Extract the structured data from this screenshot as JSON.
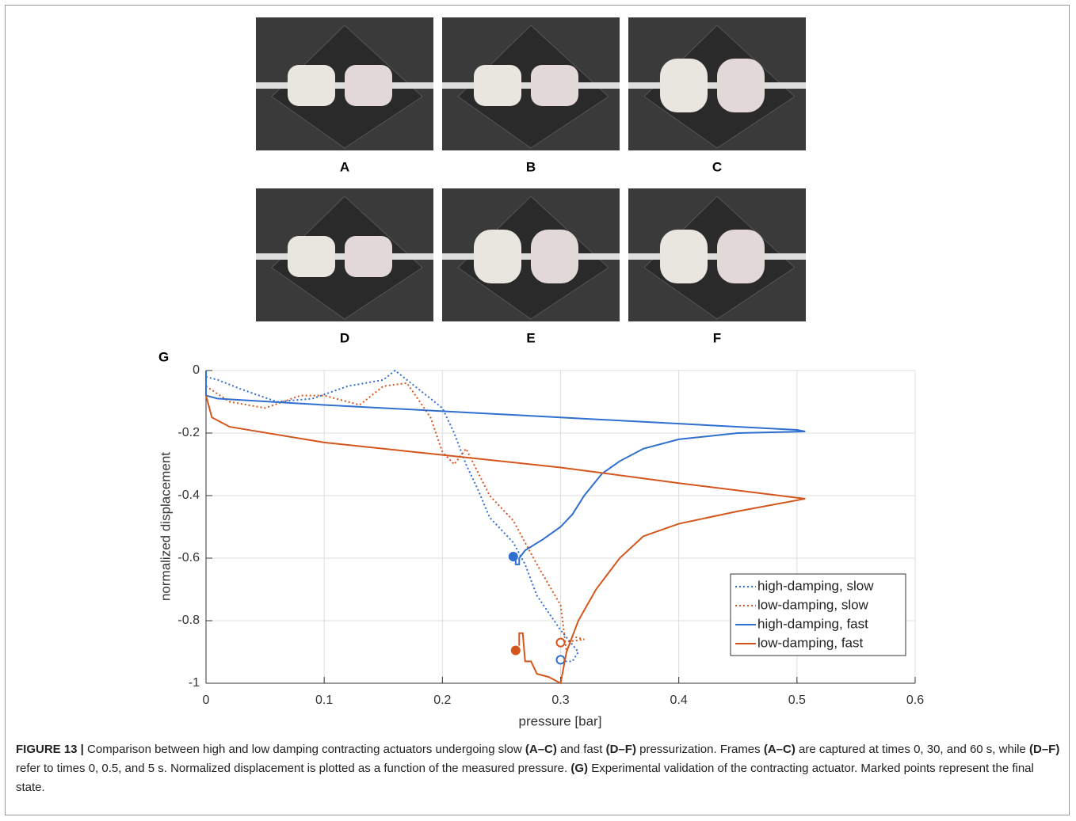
{
  "photos": {
    "panels": [
      "A",
      "B",
      "C",
      "D",
      "E",
      "F"
    ]
  },
  "chart_label": "G",
  "chart_data": {
    "type": "line",
    "xlabel": "pressure [bar]",
    "ylabel": "normalized displacement",
    "xlim": [
      0,
      0.6
    ],
    "ylim": [
      -1,
      0
    ],
    "xticks": [
      0,
      0.1,
      0.2,
      0.3,
      0.4,
      0.5,
      0.6
    ],
    "yticks": [
      -1,
      -0.8,
      -0.6,
      -0.4,
      -0.2,
      0
    ],
    "grid": true,
    "legend": "lower right",
    "series": [
      {
        "name": "high-damping, slow",
        "color": "#2f6fd0",
        "dotted": true,
        "x": [
          0,
          0.01,
          0.03,
          0.06,
          0.09,
          0.12,
          0.15,
          0.16,
          0.18,
          0.2,
          0.21,
          0.22,
          0.23,
          0.24,
          0.26,
          0.27,
          0.28,
          0.3,
          0.315,
          0.31,
          0.3
        ],
        "values": [
          -0.02,
          -0.03,
          -0.06,
          -0.1,
          -0.09,
          -0.05,
          -0.03,
          0,
          -0.06,
          -0.12,
          -0.2,
          -0.3,
          -0.38,
          -0.47,
          -0.55,
          -0.62,
          -0.72,
          -0.83,
          -0.9,
          -0.93,
          -0.93
        ],
        "final_x": 0.3,
        "final_y": -0.925,
        "final_filled": false
      },
      {
        "name": "low-damping, slow",
        "color": "#d4561c",
        "dotted": true,
        "x": [
          0,
          0.02,
          0.05,
          0.08,
          0.1,
          0.13,
          0.15,
          0.17,
          0.19,
          0.2,
          0.21,
          0.22,
          0.24,
          0.26,
          0.28,
          0.3,
          0.305,
          0.31,
          0.32,
          0.3
        ],
        "values": [
          -0.05,
          -0.1,
          -0.12,
          -0.08,
          -0.08,
          -0.11,
          -0.05,
          -0.04,
          -0.15,
          -0.26,
          -0.3,
          -0.25,
          -0.4,
          -0.48,
          -0.62,
          -0.75,
          -0.9,
          -0.85,
          -0.86,
          -0.87
        ],
        "final_x": 0.3,
        "final_y": -0.87,
        "final_filled": false
      },
      {
        "name": "high-damping, fast",
        "color": "#2f6fd0",
        "dotted": false,
        "x": [
          0,
          0,
          0.01,
          0.1,
          0.2,
          0.3,
          0.4,
          0.5,
          0.507,
          0.45,
          0.4,
          0.37,
          0.35,
          0.335,
          0.32,
          0.31,
          0.3,
          0.285,
          0.27,
          0.265,
          0.265,
          0.262,
          0.262
        ],
        "values": [
          0,
          -0.08,
          -0.09,
          -0.11,
          -0.13,
          -0.15,
          -0.17,
          -0.19,
          -0.195,
          -0.2,
          -0.22,
          -0.25,
          -0.29,
          -0.33,
          -0.4,
          -0.46,
          -0.5,
          -0.54,
          -0.575,
          -0.6,
          -0.62,
          -0.62,
          -0.59
        ],
        "final_x": 0.26,
        "final_y": -0.595,
        "final_filled": true
      },
      {
        "name": "low-damping, fast",
        "color": "#d4561c",
        "dotted": false,
        "x": [
          0,
          0.005,
          0.02,
          0.1,
          0.2,
          0.3,
          0.4,
          0.507,
          0.45,
          0.4,
          0.37,
          0.35,
          0.33,
          0.315,
          0.305,
          0.3,
          0.29,
          0.28,
          0.275,
          0.27,
          0.268,
          0.265,
          0.265
        ],
        "values": [
          -0.08,
          -0.15,
          -0.18,
          -0.23,
          -0.27,
          -0.31,
          -0.36,
          -0.41,
          -0.45,
          -0.49,
          -0.53,
          -0.6,
          -0.7,
          -0.8,
          -0.9,
          -1,
          -0.98,
          -0.97,
          -0.93,
          -0.93,
          -0.84,
          -0.84,
          -0.88
        ],
        "final_x": 0.262,
        "final_y": -0.895,
        "final_filled": true
      }
    ]
  },
  "caption": {
    "parts": [
      {
        "text": "FIGURE 13 |",
        "bold": true
      },
      {
        "text": " Comparison between high and low damping contracting actuators undergoing slow ",
        "bold": false
      },
      {
        "text": "(A–C)",
        "bold": true
      },
      {
        "text": " and fast ",
        "bold": false
      },
      {
        "text": "(D–F)",
        "bold": true
      },
      {
        "text": " pressurization. Frames ",
        "bold": false
      },
      {
        "text": "(A–C)",
        "bold": true
      },
      {
        "text": " are captured at times 0, 30, and 60 s, while ",
        "bold": false
      },
      {
        "text": "(D–F)",
        "bold": true
      },
      {
        "text": " refer to times 0, 0.5, and 5 s. Normalized displacement is plotted as a function of the measured pressure. ",
        "bold": false
      },
      {
        "text": "(G)",
        "bold": true
      },
      {
        "text": " Experimental validation of the contracting actuator. Marked points represent the final state.",
        "bold": false
      }
    ]
  }
}
